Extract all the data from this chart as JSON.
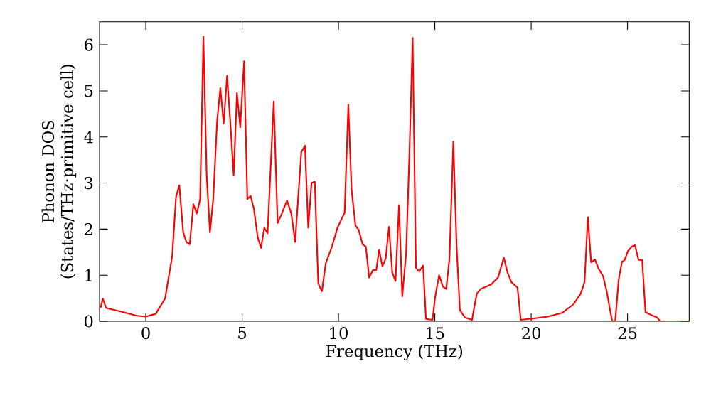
{
  "chart_data": {
    "type": "line",
    "xlabel": "Frequency (THz)",
    "ylabel": "Phonon DOS (States/THz·primitive cell)",
    "xlim": [
      -2.4,
      28.2
    ],
    "ylim": [
      0,
      6.5
    ],
    "xticks": [
      0,
      5,
      10,
      15,
      20,
      25
    ],
    "yticks": [
      0,
      1,
      2,
      3,
      4,
      5,
      6
    ],
    "grid": false,
    "marker": "none",
    "line_style": "solid",
    "series": [
      {
        "color": "#ff0000",
        "x": [
          -2.35,
          -2.23,
          -2.06,
          -1.2,
          -0.46,
          0,
          0.51,
          1.0,
          1.37,
          1.57,
          1.74,
          1.94,
          2.11,
          2.28,
          2.47,
          2.65,
          2.82,
          2.99,
          3.16,
          3.33,
          3.5,
          3.7,
          3.87,
          4.04,
          4.22,
          4.39,
          4.56,
          4.73,
          4.9,
          5.1,
          5.27,
          5.44,
          5.61,
          5.81,
          5.98,
          6.15,
          6.32,
          6.64,
          6.84,
          7.01,
          7.33,
          7.55,
          7.75,
          8.07,
          8.26,
          8.43,
          8.6,
          8.77,
          8.95,
          9.14,
          9.34,
          9.66,
          9.95,
          10.32,
          10.51,
          10.68,
          10.88,
          11.05,
          11.25,
          11.42,
          11.59,
          11.79,
          11.96,
          12.11,
          12.28,
          12.45,
          12.62,
          12.79,
          12.96,
          13.14,
          13.31,
          13.51,
          13.68,
          13.85,
          14.02,
          14.19,
          14.39,
          14.54,
          14.88,
          15.02,
          15.22,
          15.42,
          15.59,
          15.76,
          15.96,
          16.13,
          16.3,
          16.57,
          16.93,
          17.06,
          17.18,
          17.38,
          17.92,
          18.28,
          18.58,
          18.77,
          18.97,
          19.29,
          19.46,
          19.88,
          20.86,
          21.6,
          22.2,
          22.57,
          22.77,
          22.94,
          23.11,
          23.31,
          23.5,
          23.73,
          23.92,
          24.12,
          24.21,
          24.36,
          24.54,
          24.71,
          24.85,
          25.02,
          25.22,
          25.39,
          25.57,
          25.76,
          25.93,
          26.25,
          26.54,
          26.69,
          28.1
        ],
        "values": [
          0.29,
          0.49,
          0.29,
          0.2,
          0.12,
          0.1,
          0.16,
          0.49,
          1.41,
          2.7,
          2.95,
          1.93,
          1.72,
          1.67,
          2.54,
          2.34,
          2.65,
          6.18,
          3.16,
          1.93,
          2.65,
          4.34,
          5.06,
          4.29,
          5.33,
          4.29,
          3.16,
          4.95,
          4.21,
          5.64,
          2.65,
          2.72,
          2.44,
          1.82,
          1.59,
          2.03,
          1.91,
          4.77,
          2.13,
          2.29,
          2.62,
          2.34,
          1.72,
          3.67,
          3.81,
          2.03,
          3.0,
          3.03,
          0.82,
          0.65,
          1.26,
          1.62,
          2.03,
          2.36,
          4.7,
          2.85,
          2.08,
          1.98,
          1.67,
          1.62,
          0.95,
          1.11,
          1.11,
          1.55,
          1.19,
          1.36,
          2.05,
          1.06,
          0.87,
          2.52,
          0.54,
          1.47,
          3.62,
          6.15,
          1.16,
          1.08,
          1.21,
          0.05,
          0.03,
          0.54,
          1.0,
          0.75,
          0.7,
          1.36,
          3.9,
          1.62,
          0.24,
          0.08,
          0.03,
          0.34,
          0.6,
          0.7,
          0.8,
          0.95,
          1.38,
          1.06,
          0.85,
          0.73,
          0.03,
          0.05,
          0.1,
          0.18,
          0.37,
          0.6,
          0.85,
          2.26,
          1.28,
          1.34,
          1.14,
          0.98,
          0.65,
          0.18,
          0.0,
          0.0,
          0.9,
          1.29,
          1.33,
          1.52,
          1.62,
          1.65,
          1.33,
          1.33,
          0.2,
          0.13,
          0.08,
          0.0,
          0.0
        ]
      }
    ]
  }
}
